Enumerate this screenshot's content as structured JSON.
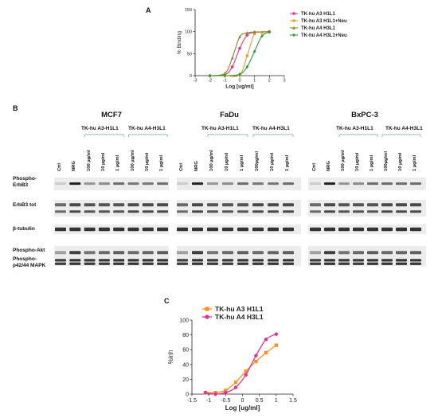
{
  "panels": {
    "a": "A",
    "b": "B",
    "c": "C"
  },
  "panel_b": {
    "cell_lines": [
      "MCF7",
      "FaDu",
      "BxPC-3"
    ],
    "group_labels": [
      "TK-hu A3-H1L1",
      "TK-hu A4-H3L1"
    ],
    "lane_labels": [
      [
        "Ctrl",
        "NRG",
        "100 µg/ml",
        "10 µg/ml",
        "1 µg/ml",
        "100 µg/ml",
        "10 µg/ml",
        "1 µg/ml"
      ],
      [
        "Ctrl",
        "NRG",
        "100 µg/ml",
        "10 µg/ml",
        "1 µg/ml",
        "100µg/ml",
        "10 µg/ml",
        "1 µg/ml"
      ],
      [
        "Ctrl",
        "NRG",
        "100 µg/ml",
        "10 µg/ml",
        "1 µg/ml",
        "100µg/ml",
        "10 µg/ml",
        "1 µg/ml"
      ]
    ],
    "row_labels": [
      "Phospho-\nErbB3",
      "ErbB3 tot",
      "β-tubulin",
      "Phospho-Akt",
      "Phospho-\np42/44 MAPK"
    ]
  },
  "chart_data": [
    {
      "type": "line",
      "panel": "A",
      "xlabel": "Log [ug/ml]",
      "ylabel": "% Binding",
      "xlim": [
        -3,
        3
      ],
      "ylim": [
        0,
        150
      ],
      "xticks": [
        -3,
        -2,
        -1,
        0,
        1,
        2,
        3
      ],
      "yticks": [
        0,
        50,
        100,
        150
      ],
      "legend_position": "right",
      "series": [
        {
          "name": "TK-hu A3 H1L1",
          "color": "#e0309a",
          "marker": "circle",
          "x": [
            -2,
            -1,
            -0.5,
            0,
            0.5,
            1,
            2
          ],
          "y": [
            0,
            2,
            20,
            62,
            92,
            98,
            100
          ]
        },
        {
          "name": "TK-hu A3 H1L1+Neu",
          "color": "#f39a2b",
          "marker": "circle",
          "x": [
            -2,
            -1,
            0,
            0.5,
            1,
            1.5,
            2
          ],
          "y": [
            0,
            0,
            2,
            45,
            95,
            98,
            100
          ]
        },
        {
          "name": "TK-hu A4 H3L1",
          "color": "#8a8a20",
          "marker": "triangle",
          "x": [
            -2,
            -1,
            -0.5,
            0,
            0.5,
            1,
            2
          ],
          "y": [
            0,
            5,
            40,
            88,
            97,
            99,
            100
          ]
        },
        {
          "name": "TK-hu A4 H3L1+Neu",
          "color": "#2a9a3a",
          "marker": "diamond",
          "x": [
            -2,
            -1,
            0,
            0.5,
            1,
            1.5,
            2
          ],
          "y": [
            0,
            0,
            3,
            20,
            55,
            90,
            99
          ]
        }
      ]
    },
    {
      "type": "line",
      "panel": "C",
      "xlabel": "Log [ug/ml]",
      "ylabel": "%inh",
      "xlim": [
        -1.5,
        1.5
      ],
      "ylim": [
        0,
        100
      ],
      "xticks": [
        -1.5,
        -1,
        -0.5,
        0,
        0.5,
        1,
        1.5
      ],
      "yticks": [
        0,
        20,
        40,
        60,
        80,
        100
      ],
      "legend_position": "top-left",
      "series": [
        {
          "name": "TK-hu A3 H1L1",
          "color": "#f7941d",
          "marker": "square",
          "x": [
            -1.1,
            -0.8,
            -0.5,
            -0.2,
            0.1,
            0.4,
            0.7,
            1.0
          ],
          "y": [
            2,
            2,
            5,
            16,
            31,
            44,
            56,
            66
          ]
        },
        {
          "name": "TK-hu A4 H3L1",
          "color": "#e0309a",
          "marker": "circle",
          "x": [
            -1.1,
            -0.8,
            -0.5,
            -0.2,
            0.1,
            0.4,
            0.7,
            1.0
          ],
          "y": [
            2,
            0,
            2,
            9,
            26,
            52,
            74,
            81
          ]
        }
      ]
    }
  ]
}
